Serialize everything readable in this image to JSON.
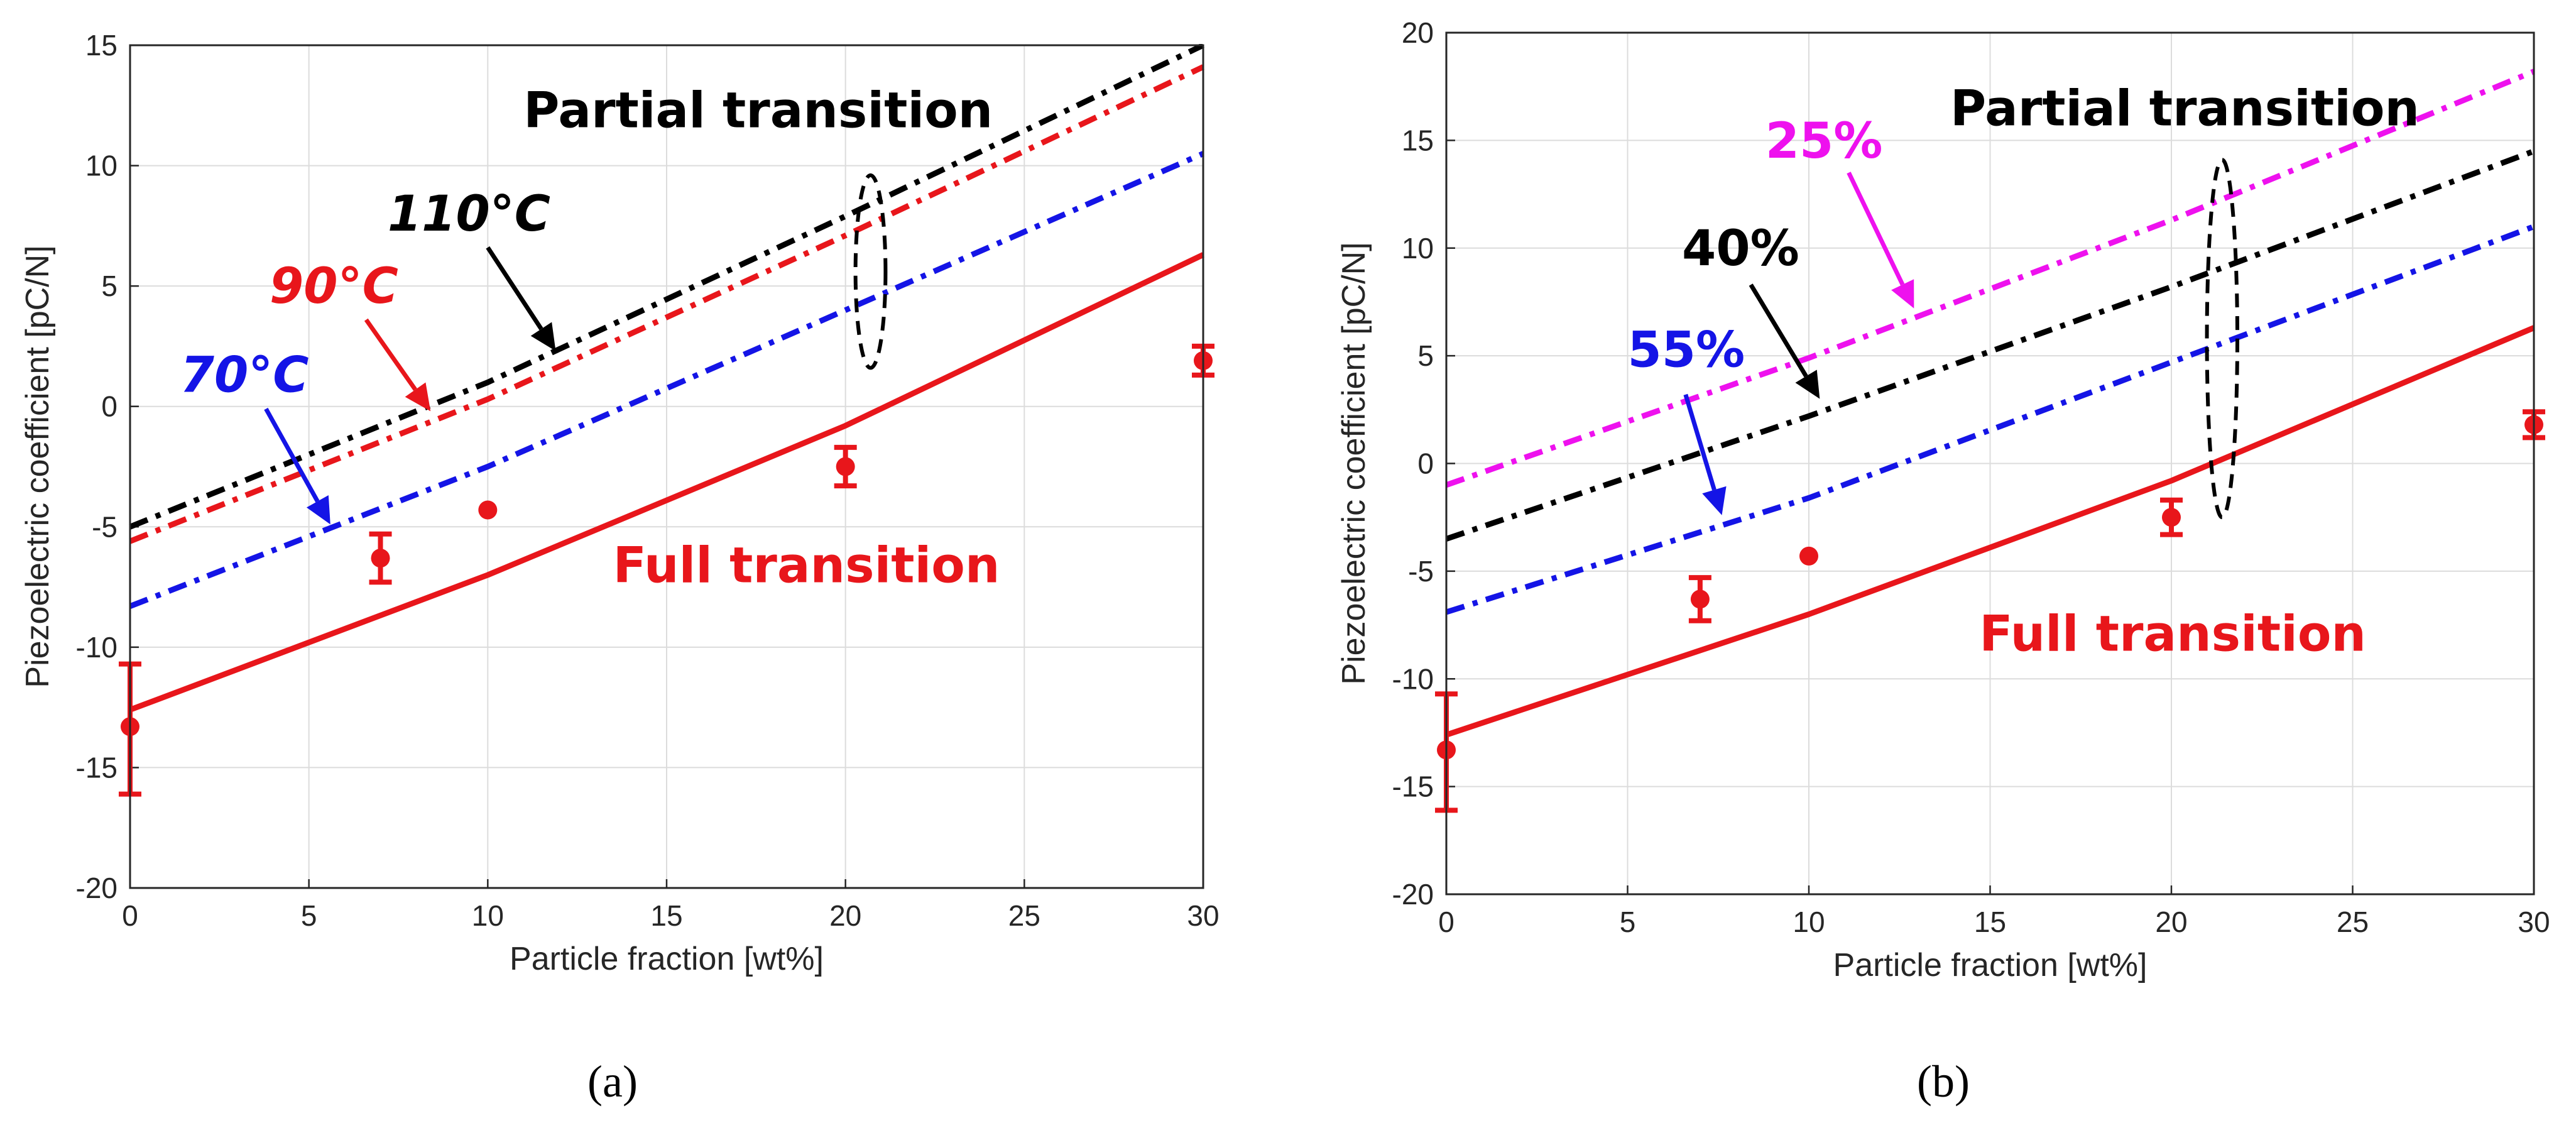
{
  "colors": {
    "red": "#e8161b",
    "black": "#000000",
    "blue": "#1414e6",
    "magenta": "#ee11ee",
    "grid": "#dcdcdc"
  },
  "chart_data": [
    {
      "id": "a",
      "type": "line",
      "caption": "(a)",
      "xlabel": "Particle fraction [wt%]",
      "ylabel": "Piezoelectric coefficient [pC/N]",
      "xlim": [
        0,
        30
      ],
      "ylim": [
        -20,
        15
      ],
      "xticks": [
        0,
        5,
        10,
        15,
        20,
        25,
        30
      ],
      "yticks": [
        -20,
        -15,
        -10,
        -5,
        0,
        5,
        10,
        15
      ],
      "grid": true,
      "series": [
        {
          "name": "Full transition",
          "style": "solid",
          "color": "red",
          "x": [
            0,
            10,
            20,
            30
          ],
          "y": [
            -12.6,
            -7.0,
            -0.8,
            6.3
          ]
        },
        {
          "name": "70°C",
          "style": "dashdot",
          "color": "blue",
          "x": [
            0,
            10,
            20,
            30
          ],
          "y": [
            -8.3,
            -2.5,
            4.0,
            10.5
          ]
        },
        {
          "name": "90°C",
          "style": "dashdot",
          "color": "red",
          "x": [
            0,
            10,
            20,
            30
          ],
          "y": [
            -5.6,
            0.3,
            7.1,
            14.1
          ]
        },
        {
          "name": "110°C",
          "style": "dashdot",
          "color": "black",
          "x": [
            0,
            10,
            20,
            30
          ],
          "y": [
            -5.0,
            1.0,
            7.9,
            15.0
          ]
        }
      ],
      "measurements": [
        {
          "x": 0,
          "y": -13.3,
          "err_low": -16.1,
          "err_high": -10.7
        },
        {
          "x": 7,
          "y": -6.3,
          "err_low": -7.3,
          "err_high": -5.3
        },
        {
          "x": 10,
          "y": -4.3,
          "err_low": null,
          "err_high": null
        },
        {
          "x": 20,
          "y": -2.5,
          "err_low": -3.3,
          "err_high": -1.7
        },
        {
          "x": 30,
          "y": 1.9,
          "err_low": 1.3,
          "err_high": 2.5
        }
      ],
      "annotations": [
        {
          "text": "Partial transition",
          "color": "black",
          "x": 11,
          "y": 11.6,
          "italic": false
        },
        {
          "text": "Full transition",
          "color": "red",
          "x": 13.5,
          "y": -7.3,
          "italic": false
        },
        {
          "text": "110°C",
          "color": "black",
          "x": 7.2,
          "y": 7.3,
          "italic": true
        },
        {
          "text": "90°C",
          "color": "red",
          "x": 3.9,
          "y": 4.3,
          "italic": true
        },
        {
          "text": "70°C",
          "color": "blue",
          "x": 1.4,
          "y": 0.6,
          "italic": true
        }
      ],
      "arrows": [
        {
          "color": "black",
          "from": [
            10.0,
            6.6
          ],
          "to": [
            11.9,
            2.3
          ]
        },
        {
          "color": "red",
          "from": [
            6.6,
            3.6
          ],
          "to": [
            8.4,
            -0.2
          ]
        },
        {
          "color": "blue",
          "from": [
            3.8,
            -0.1
          ],
          "to": [
            5.6,
            -4.9
          ]
        }
      ],
      "ellipse": {
        "cx": 20.7,
        "cy": 5.6,
        "rx": 0.42,
        "ry": 4.0
      }
    },
    {
      "id": "b",
      "type": "line",
      "caption": "(b)",
      "xlabel": "Particle fraction [wt%]",
      "ylabel": "Piezoelectric coefficient [pC/N]",
      "xlim": [
        0,
        30
      ],
      "ylim": [
        -20,
        20
      ],
      "xticks": [
        0,
        5,
        10,
        15,
        20,
        25,
        30
      ],
      "yticks": [
        -20,
        -15,
        -10,
        -5,
        0,
        5,
        10,
        15,
        20
      ],
      "grid": true,
      "series": [
        {
          "name": "Full transition",
          "style": "solid",
          "color": "red",
          "x": [
            0,
            10,
            20,
            30
          ],
          "y": [
            -12.6,
            -7.0,
            -0.8,
            6.3
          ]
        },
        {
          "name": "55%",
          "style": "dashdot",
          "color": "blue",
          "x": [
            0,
            10,
            20,
            30
          ],
          "y": [
            -6.9,
            -1.6,
            4.7,
            11.0
          ]
        },
        {
          "name": "40%",
          "style": "dashdot",
          "color": "black",
          "x": [
            0,
            10,
            20,
            30
          ],
          "y": [
            -3.5,
            2.2,
            8.2,
            14.5
          ]
        },
        {
          "name": "25%",
          "style": "dashdot",
          "color": "magenta",
          "x": [
            0,
            10,
            20,
            30
          ],
          "y": [
            -1.0,
            4.9,
            11.3,
            18.2
          ]
        }
      ],
      "measurements": [
        {
          "x": 0,
          "y": -13.3,
          "err_low": -16.1,
          "err_high": -10.7
        },
        {
          "x": 7,
          "y": -6.3,
          "err_low": -7.3,
          "err_high": -5.3
        },
        {
          "x": 10,
          "y": -4.3,
          "err_low": null,
          "err_high": null
        },
        {
          "x": 20,
          "y": -2.5,
          "err_low": -3.3,
          "err_high": -1.7
        },
        {
          "x": 30,
          "y": 1.8,
          "err_low": 1.2,
          "err_high": 2.4
        }
      ],
      "annotations": [
        {
          "text": "Partial transition",
          "color": "black",
          "x": 13.9,
          "y": 15.7,
          "italic": false
        },
        {
          "text": "Full transition",
          "color": "red",
          "x": 14.7,
          "y": -8.7,
          "italic": false
        },
        {
          "text": "25%",
          "color": "magenta",
          "x": 8.8,
          "y": 14.2,
          "italic": false
        },
        {
          "text": "40%",
          "color": "black",
          "x": 6.5,
          "y": 9.2,
          "italic": false
        },
        {
          "text": "55%",
          "color": "blue",
          "x": 5.0,
          "y": 4.5,
          "italic": false
        }
      ],
      "arrows": [
        {
          "color": "magenta",
          "from": [
            11.1,
            13.5
          ],
          "to": [
            12.9,
            7.2
          ]
        },
        {
          "color": "black",
          "from": [
            8.4,
            8.3
          ],
          "to": [
            10.3,
            3.0
          ]
        },
        {
          "color": "blue",
          "from": [
            6.6,
            3.2
          ],
          "to": [
            7.6,
            -2.4
          ]
        }
      ],
      "ellipse": {
        "cx": 21.4,
        "cy": 5.8,
        "rx": 0.42,
        "ry": 8.3
      }
    }
  ]
}
